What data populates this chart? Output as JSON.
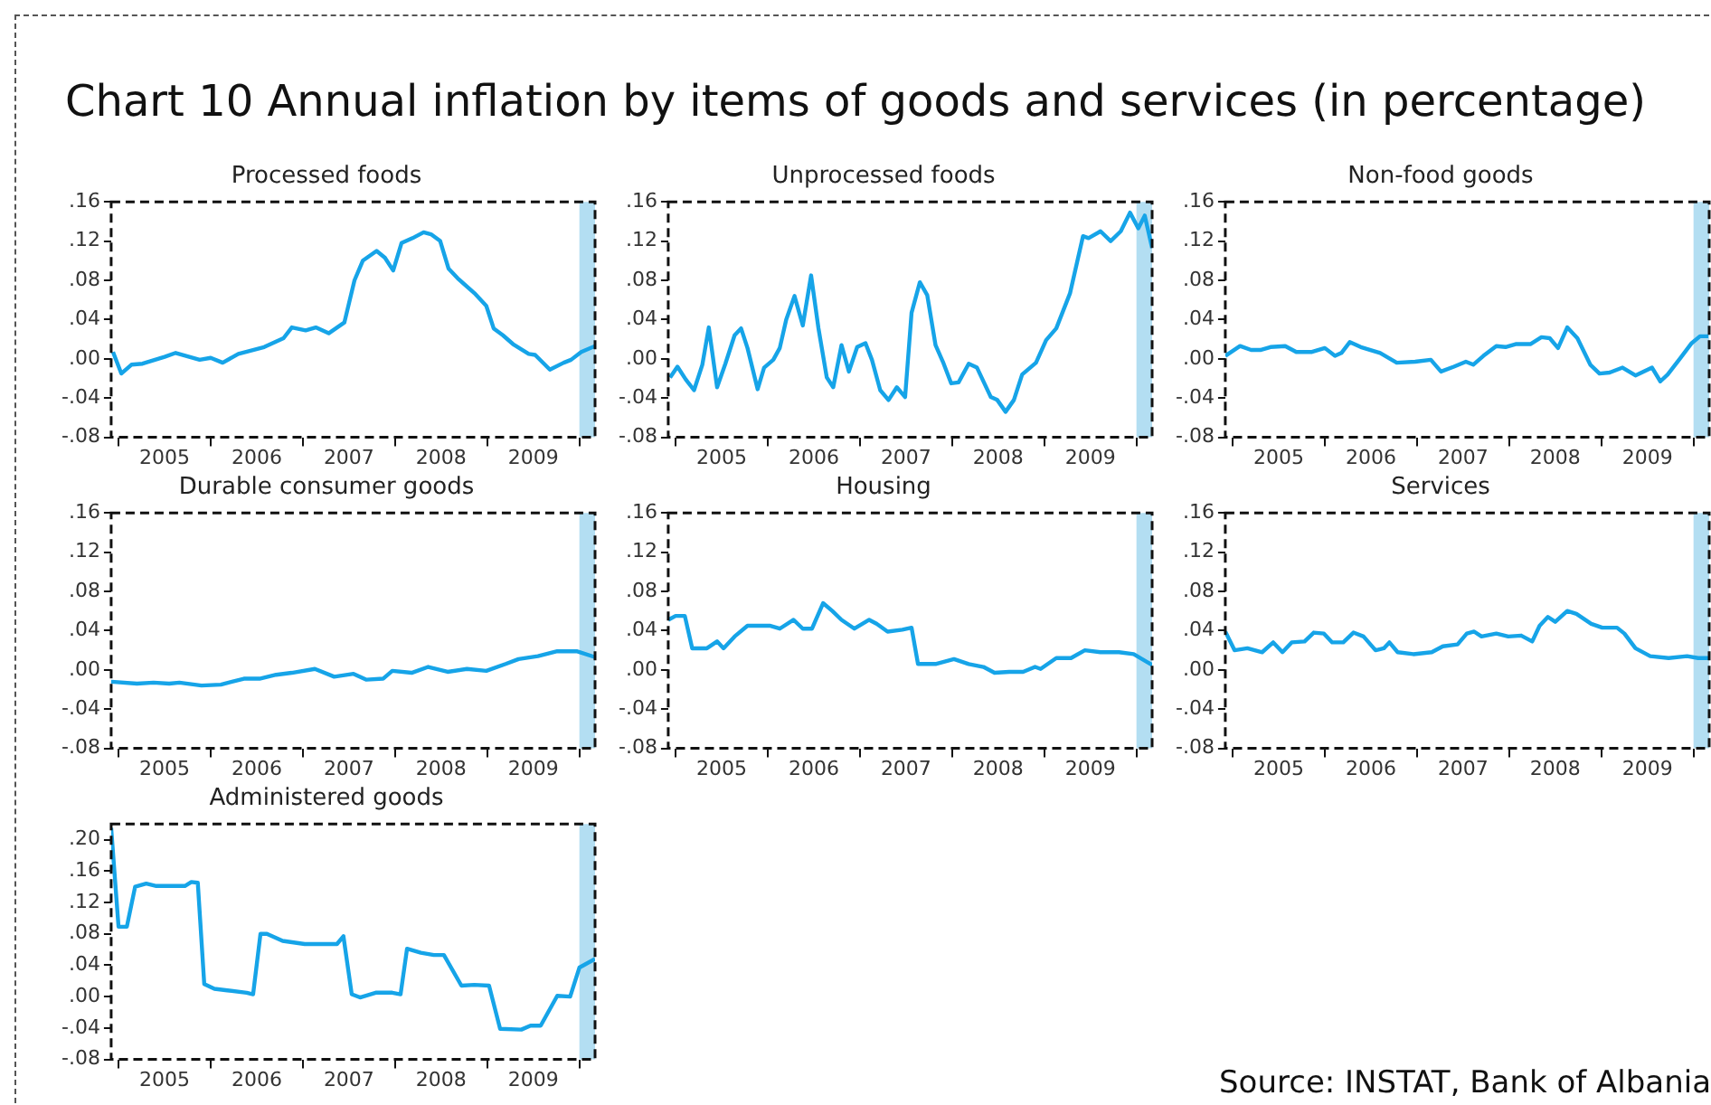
{
  "chart_data": [
    {
      "type": "other",
      "title": "Chart 10 Annual inflation by items of goods and services (in percentage)",
      "annotations": [
        "Source: INSTAT, Bank of Albania"
      ]
    },
    {
      "type": "line",
      "title": "Processed foods",
      "xlim": [
        2004.92,
        2010.17
      ],
      "ylim": [
        -0.08,
        0.16
      ],
      "xticks": [
        {
          "value": 2005,
          "label": null
        },
        {
          "value": 2005.5,
          "label": "2005"
        },
        {
          "value": 2006,
          "label": null
        },
        {
          "value": 2006.5,
          "label": "2006"
        },
        {
          "value": 2007,
          "label": null
        },
        {
          "value": 2007.5,
          "label": "2007"
        },
        {
          "value": 2008,
          "label": null
        },
        {
          "value": 2008.5,
          "label": "2008"
        },
        {
          "value": 2009,
          "label": null
        },
        {
          "value": 2009.5,
          "label": "2009"
        },
        {
          "value": 2010,
          "label": null
        }
      ],
      "yticks": [
        {
          "value": -0.08,
          "label": "-.08"
        },
        {
          "value": -0.04,
          "label": "-.04"
        },
        {
          "value": 0,
          "label": ".00"
        },
        {
          "value": 0.04,
          "label": ".04"
        },
        {
          "value": 0.08,
          "label": ".08"
        },
        {
          "value": 0.12,
          "label": ".12"
        },
        {
          "value": 0.16,
          "label": ".16"
        }
      ],
      "bands": [
        {
          "axis": "x",
          "from": 2010.0,
          "to": 2010.17,
          "color": "#b3def2"
        }
      ],
      "x": [
        2004.94,
        2005.03,
        2005.14,
        2005.26,
        2005.5,
        2005.62,
        2005.88,
        2006.0,
        2006.13,
        2006.3,
        2006.58,
        2006.79,
        2006.88,
        2007.03,
        2007.14,
        2007.28,
        2007.45,
        2007.56,
        2007.65,
        2007.8,
        2007.89,
        2007.98,
        2008.07,
        2008.19,
        2008.31,
        2008.39,
        2008.49,
        2008.58,
        2008.68,
        2008.86,
        2008.99,
        2009.07,
        2009.17,
        2009.28,
        2009.45,
        2009.52,
        2009.68,
        2009.83,
        2009.91,
        2010.02,
        2010.17
      ],
      "series": [
        {
          "color": "#16a4e8",
          "values": [
            0.007,
            -0.015,
            -0.006,
            -0.005,
            0.002,
            0.006,
            -0.001,
            0.001,
            -0.004,
            0.005,
            0.012,
            0.021,
            0.032,
            0.029,
            0.032,
            0.026,
            0.037,
            0.08,
            0.1,
            0.11,
            0.103,
            0.09,
            0.118,
            0.123,
            0.129,
            0.127,
            0.12,
            0.092,
            0.082,
            0.067,
            0.054,
            0.031,
            0.024,
            0.015,
            0.005,
            0.004,
            -0.011,
            -0.004,
            -0.001,
            0.007,
            0.013
          ]
        }
      ]
    },
    {
      "type": "line",
      "title": "Unprocessed foods",
      "xlim": [
        2004.92,
        2010.17
      ],
      "ylim": [
        -0.08,
        0.16
      ],
      "xticks": [
        {
          "value": 2005,
          "label": null
        },
        {
          "value": 2005.5,
          "label": "2005"
        },
        {
          "value": 2006,
          "label": null
        },
        {
          "value": 2006.5,
          "label": "2006"
        },
        {
          "value": 2007,
          "label": null
        },
        {
          "value": 2007.5,
          "label": "2007"
        },
        {
          "value": 2008,
          "label": null
        },
        {
          "value": 2008.5,
          "label": "2008"
        },
        {
          "value": 2009,
          "label": null
        },
        {
          "value": 2009.5,
          "label": "2009"
        },
        {
          "value": 2010,
          "label": null
        }
      ],
      "yticks": [
        {
          "value": -0.08,
          "label": "-.08"
        },
        {
          "value": -0.04,
          "label": "-.04"
        },
        {
          "value": 0,
          "label": ".00"
        },
        {
          "value": 0.04,
          "label": ".04"
        },
        {
          "value": 0.08,
          "label": ".08"
        },
        {
          "value": 0.12,
          "label": ".12"
        },
        {
          "value": 0.16,
          "label": ".16"
        }
      ],
      "bands": [
        {
          "axis": "x",
          "from": 2010.0,
          "to": 2010.17,
          "color": "#b3def2"
        }
      ],
      "x": [
        2004.94,
        2005.02,
        2005.11,
        2005.2,
        2005.29,
        2005.36,
        2005.45,
        2005.54,
        2005.64,
        2005.71,
        2005.78,
        2005.89,
        2005.96,
        2006.06,
        2006.13,
        2006.2,
        2006.29,
        2006.38,
        2006.47,
        2006.55,
        2006.64,
        2006.71,
        2006.8,
        2006.88,
        2006.97,
        2007.06,
        2007.13,
        2007.22,
        2007.31,
        2007.4,
        2007.49,
        2007.56,
        2007.65,
        2007.73,
        2007.82,
        2007.9,
        2007.99,
        2008.07,
        2008.18,
        2008.27,
        2008.42,
        2008.49,
        2008.58,
        2008.67,
        2008.76,
        2008.91,
        2009.02,
        2009.13,
        2009.28,
        2009.42,
        2009.48,
        2009.61,
        2009.72,
        2009.83,
        2009.93,
        2010.02,
        2010.09,
        2010.17
      ],
      "series": [
        {
          "color": "#16a4e8",
          "values": [
            -0.019,
            -0.008,
            -0.021,
            -0.032,
            -0.006,
            0.032,
            -0.029,
            -0.005,
            0.024,
            0.031,
            0.011,
            -0.031,
            -0.009,
            -0.001,
            0.011,
            0.04,
            0.064,
            0.034,
            0.085,
            0.031,
            -0.019,
            -0.029,
            0.014,
            -0.013,
            0.012,
            0.016,
            -0.001,
            -0.032,
            -0.042,
            -0.029,
            -0.039,
            0.047,
            0.078,
            0.065,
            0.014,
            -0.003,
            -0.025,
            -0.024,
            -0.005,
            -0.009,
            -0.039,
            -0.042,
            -0.054,
            -0.042,
            -0.016,
            -0.004,
            0.019,
            0.031,
            0.067,
            0.125,
            0.123,
            0.13,
            0.12,
            0.13,
            0.149,
            0.133,
            0.146,
            0.113
          ]
        }
      ]
    },
    {
      "type": "line",
      "title": "Non-food goods",
      "xlim": [
        2004.92,
        2010.17
      ],
      "ylim": [
        -0.08,
        0.16
      ],
      "xticks": [
        {
          "value": 2005,
          "label": null
        },
        {
          "value": 2005.5,
          "label": "2005"
        },
        {
          "value": 2006,
          "label": null
        },
        {
          "value": 2006.5,
          "label": "2006"
        },
        {
          "value": 2007,
          "label": null
        },
        {
          "value": 2007.5,
          "label": "2007"
        },
        {
          "value": 2008,
          "label": null
        },
        {
          "value": 2008.5,
          "label": "2008"
        },
        {
          "value": 2009,
          "label": null
        },
        {
          "value": 2009.5,
          "label": "2009"
        },
        {
          "value": 2010,
          "label": null
        }
      ],
      "yticks": [
        {
          "value": -0.08,
          "label": "-.08"
        },
        {
          "value": -0.04,
          "label": "-.04"
        },
        {
          "value": 0,
          "label": ".00"
        },
        {
          "value": 0.04,
          "label": ".04"
        },
        {
          "value": 0.08,
          "label": ".08"
        },
        {
          "value": 0.12,
          "label": ".12"
        },
        {
          "value": 0.16,
          "label": ".16"
        }
      ],
      "bands": [
        {
          "axis": "x",
          "from": 2010.0,
          "to": 2010.17,
          "color": "#b3def2"
        }
      ],
      "x": [
        2004.92,
        2005.08,
        2005.2,
        2005.3,
        2005.41,
        2005.57,
        2005.69,
        2005.86,
        2006.0,
        2006.11,
        2006.18,
        2006.27,
        2006.39,
        2006.6,
        2006.78,
        2006.98,
        2007.15,
        2007.26,
        2007.4,
        2007.53,
        2007.61,
        2007.72,
        2007.86,
        2007.96,
        2008.07,
        2008.23,
        2008.35,
        2008.44,
        2008.53,
        2008.63,
        2008.74,
        2008.88,
        2008.98,
        2009.09,
        2009.23,
        2009.37,
        2009.55,
        2009.64,
        2009.72,
        2009.86,
        2009.98,
        2010.07,
        2010.16
      ],
      "series": [
        {
          "color": "#16a4e8",
          "values": [
            0.003,
            0.013,
            0.009,
            0.009,
            0.012,
            0.013,
            0.007,
            0.007,
            0.011,
            0.003,
            0.006,
            0.017,
            0.012,
            0.006,
            -0.004,
            -0.003,
            -0.001,
            -0.013,
            -0.008,
            -0.003,
            -0.006,
            0.003,
            0.013,
            0.012,
            0.015,
            0.015,
            0.022,
            0.021,
            0.011,
            0.032,
            0.021,
            -0.006,
            -0.015,
            -0.014,
            -0.009,
            -0.017,
            -0.009,
            -0.023,
            -0.016,
            0.001,
            0.016,
            0.023,
            0.023
          ]
        }
      ]
    },
    {
      "type": "line",
      "title": "Durable consumer goods",
      "xlim": [
        2004.92,
        2010.17
      ],
      "ylim": [
        -0.08,
        0.16
      ],
      "xticks": [
        {
          "value": 2005,
          "label": null
        },
        {
          "value": 2005.5,
          "label": "2005"
        },
        {
          "value": 2006,
          "label": null
        },
        {
          "value": 2006.5,
          "label": "2006"
        },
        {
          "value": 2007,
          "label": null
        },
        {
          "value": 2007.5,
          "label": "2007"
        },
        {
          "value": 2008,
          "label": null
        },
        {
          "value": 2008.5,
          "label": "2008"
        },
        {
          "value": 2009,
          "label": null
        },
        {
          "value": 2009.5,
          "label": "2009"
        },
        {
          "value": 2010,
          "label": null
        }
      ],
      "yticks": [
        {
          "value": -0.08,
          "label": "-.08"
        },
        {
          "value": -0.04,
          "label": "-.04"
        },
        {
          "value": 0,
          "label": ".00"
        },
        {
          "value": 0.04,
          "label": ".04"
        },
        {
          "value": 0.08,
          "label": ".08"
        },
        {
          "value": 0.12,
          "label": ".12"
        },
        {
          "value": 0.16,
          "label": ".16"
        }
      ],
      "bands": [
        {
          "axis": "x",
          "from": 2010.0,
          "to": 2010.17,
          "color": "#b3def2"
        }
      ],
      "x": [
        2004.92,
        2005.2,
        2005.38,
        2005.55,
        2005.66,
        2005.9,
        2006.11,
        2006.36,
        2006.53,
        2006.71,
        2006.88,
        2007.13,
        2007.34,
        2007.55,
        2007.69,
        2007.87,
        2007.97,
        2008.18,
        2008.36,
        2008.57,
        2008.78,
        2008.99,
        2009.2,
        2009.34,
        2009.55,
        2009.76,
        2009.97,
        2010.17
      ],
      "series": [
        {
          "color": "#16a4e8",
          "values": [
            -0.012,
            -0.014,
            -0.013,
            -0.014,
            -0.013,
            -0.016,
            -0.015,
            -0.009,
            -0.009,
            -0.005,
            -0.003,
            0.001,
            -0.007,
            -0.004,
            -0.01,
            -0.009,
            -0.001,
            -0.003,
            0.003,
            -0.002,
            0.001,
            -0.001,
            0.006,
            0.011,
            0.014,
            0.019,
            0.019,
            0.013
          ]
        }
      ]
    },
    {
      "type": "line",
      "title": "Housing",
      "xlim": [
        2004.92,
        2010.17
      ],
      "ylim": [
        -0.08,
        0.16
      ],
      "xticks": [
        {
          "value": 2005,
          "label": null
        },
        {
          "value": 2005.5,
          "label": "2005"
        },
        {
          "value": 2006,
          "label": null
        },
        {
          "value": 2006.5,
          "label": "2006"
        },
        {
          "value": 2007,
          "label": null
        },
        {
          "value": 2007.5,
          "label": "2007"
        },
        {
          "value": 2008,
          "label": null
        },
        {
          "value": 2008.5,
          "label": "2008"
        },
        {
          "value": 2009,
          "label": null
        },
        {
          "value": 2009.5,
          "label": "2009"
        },
        {
          "value": 2010,
          "label": null
        }
      ],
      "yticks": [
        {
          "value": -0.08,
          "label": "-.08"
        },
        {
          "value": -0.04,
          "label": "-.04"
        },
        {
          "value": 0,
          "label": ".00"
        },
        {
          "value": 0.04,
          "label": ".04"
        },
        {
          "value": 0.08,
          "label": ".08"
        },
        {
          "value": 0.12,
          "label": ".12"
        },
        {
          "value": 0.16,
          "label": ".16"
        }
      ],
      "bands": [
        {
          "axis": "x",
          "from": 2010.0,
          "to": 2010.17,
          "color": "#b3def2"
        }
      ],
      "x": [
        2004.92,
        2005.0,
        2005.1,
        2005.18,
        2005.34,
        2005.45,
        2005.52,
        2005.64,
        2005.78,
        2006.02,
        2006.13,
        2006.28,
        2006.38,
        2006.48,
        2006.6,
        2006.7,
        2006.8,
        2006.94,
        2007.1,
        2007.18,
        2007.3,
        2007.46,
        2007.56,
        2007.63,
        2007.82,
        2008.02,
        2008.18,
        2008.34,
        2008.46,
        2008.62,
        2008.77,
        2008.9,
        2008.96,
        2009.13,
        2009.29,
        2009.44,
        2009.61,
        2009.81,
        2009.97,
        2010.17
      ],
      "series": [
        {
          "color": "#16a4e8",
          "values": [
            0.051,
            0.055,
            0.055,
            0.022,
            0.022,
            0.029,
            0.022,
            0.034,
            0.045,
            0.045,
            0.042,
            0.051,
            0.042,
            0.042,
            0.068,
            0.06,
            0.051,
            0.042,
            0.051,
            0.047,
            0.039,
            0.041,
            0.043,
            0.006,
            0.006,
            0.011,
            0.006,
            0.003,
            -0.003,
            -0.002,
            -0.002,
            0.003,
            0.001,
            0.012,
            0.012,
            0.02,
            0.018,
            0.018,
            0.016,
            0.005
          ]
        }
      ]
    },
    {
      "type": "line",
      "title": "Services",
      "xlim": [
        2004.92,
        2010.17
      ],
      "ylim": [
        -0.08,
        0.16
      ],
      "xticks": [
        {
          "value": 2005,
          "label": null
        },
        {
          "value": 2005.5,
          "label": "2005"
        },
        {
          "value": 2006,
          "label": null
        },
        {
          "value": 2006.5,
          "label": "2006"
        },
        {
          "value": 2007,
          "label": null
        },
        {
          "value": 2007.5,
          "label": "2007"
        },
        {
          "value": 2008,
          "label": null
        },
        {
          "value": 2008.5,
          "label": "2008"
        },
        {
          "value": 2009,
          "label": null
        },
        {
          "value": 2009.5,
          "label": "2009"
        },
        {
          "value": 2010,
          "label": null
        }
      ],
      "yticks": [
        {
          "value": -0.08,
          "label": "-.08"
        },
        {
          "value": -0.04,
          "label": "-.04"
        },
        {
          "value": 0,
          "label": ".00"
        },
        {
          "value": 0.04,
          "label": ".04"
        },
        {
          "value": 0.08,
          "label": ".08"
        },
        {
          "value": 0.12,
          "label": ".12"
        },
        {
          "value": 0.16,
          "label": ".16"
        }
      ],
      "bands": [
        {
          "axis": "x",
          "from": 2010.0,
          "to": 2010.17,
          "color": "#b3def2"
        }
      ],
      "x": [
        2004.92,
        2005.02,
        2005.16,
        2005.32,
        2005.44,
        2005.54,
        2005.64,
        2005.78,
        2005.88,
        2005.99,
        2006.08,
        2006.2,
        2006.31,
        2006.42,
        2006.55,
        2006.64,
        2006.7,
        2006.79,
        2006.96,
        2007.16,
        2007.28,
        2007.44,
        2007.54,
        2007.62,
        2007.7,
        2007.86,
        2007.99,
        2008.13,
        2008.25,
        2008.33,
        2008.42,
        2008.5,
        2008.63,
        2008.73,
        2008.89,
        2009.01,
        2009.17,
        2009.25,
        2009.37,
        2009.53,
        2009.73,
        2009.93,
        2010.05,
        2010.17
      ],
      "series": [
        {
          "color": "#16a4e8",
          "values": [
            0.039,
            0.02,
            0.022,
            0.018,
            0.028,
            0.018,
            0.028,
            0.029,
            0.038,
            0.037,
            0.028,
            0.028,
            0.038,
            0.034,
            0.02,
            0.022,
            0.028,
            0.018,
            0.016,
            0.018,
            0.024,
            0.026,
            0.037,
            0.039,
            0.034,
            0.037,
            0.034,
            0.035,
            0.029,
            0.045,
            0.054,
            0.049,
            0.06,
            0.057,
            0.047,
            0.043,
            0.043,
            0.037,
            0.022,
            0.014,
            0.012,
            0.014,
            0.012,
            0.012
          ]
        }
      ]
    },
    {
      "type": "line",
      "title": "Administered goods",
      "xlim": [
        2004.92,
        2010.17
      ],
      "ylim": [
        -0.08,
        0.22
      ],
      "xticks": [
        {
          "value": 2005,
          "label": null
        },
        {
          "value": 2005.5,
          "label": "2005"
        },
        {
          "value": 2006,
          "label": null
        },
        {
          "value": 2006.5,
          "label": "2006"
        },
        {
          "value": 2007,
          "label": null
        },
        {
          "value": 2007.5,
          "label": "2007"
        },
        {
          "value": 2008,
          "label": null
        },
        {
          "value": 2008.5,
          "label": "2008"
        },
        {
          "value": 2009,
          "label": null
        },
        {
          "value": 2009.5,
          "label": "2009"
        },
        {
          "value": 2010,
          "label": null
        }
      ],
      "yticks": [
        {
          "value": -0.08,
          "label": "-.08"
        },
        {
          "value": -0.04,
          "label": "-.04"
        },
        {
          "value": 0,
          "label": ".00"
        },
        {
          "value": 0.04,
          "label": ".04"
        },
        {
          "value": 0.08,
          "label": ".08"
        },
        {
          "value": 0.12,
          "label": ".12"
        },
        {
          "value": 0.16,
          "label": ".16"
        },
        {
          "value": 0.2,
          "label": ".20"
        }
      ],
      "bands": [
        {
          "axis": "x",
          "from": 2010.0,
          "to": 2010.17,
          "color": "#b3def2"
        }
      ],
      "x": [
        2004.92,
        2005.0,
        2005.09,
        2005.18,
        2005.3,
        2005.41,
        2005.55,
        2005.72,
        2005.79,
        2005.86,
        2005.93,
        2006.04,
        2006.18,
        2006.39,
        2006.46,
        2006.54,
        2006.61,
        2006.78,
        2007.02,
        2007.37,
        2007.44,
        2007.53,
        2007.62,
        2007.79,
        2007.97,
        2008.06,
        2008.13,
        2008.28,
        2008.42,
        2008.53,
        2008.72,
        2008.86,
        2009.02,
        2009.14,
        2009.37,
        2009.47,
        2009.58,
        2009.76,
        2009.9,
        2010.0,
        2010.17
      ],
      "series": [
        {
          "color": "#16a4e8",
          "values": [
            0.215,
            0.089,
            0.089,
            0.14,
            0.144,
            0.141,
            0.141,
            0.141,
            0.146,
            0.145,
            0.016,
            0.01,
            0.008,
            0.005,
            0.003,
            0.08,
            0.08,
            0.071,
            0.067,
            0.067,
            0.077,
            0.003,
            -0.001,
            0.005,
            0.005,
            0.003,
            0.061,
            0.056,
            0.053,
            0.053,
            0.014,
            0.015,
            0.014,
            -0.041,
            -0.042,
            -0.037,
            -0.037,
            0.001,
            0.0,
            0.037,
            0.048
          ]
        }
      ]
    }
  ]
}
